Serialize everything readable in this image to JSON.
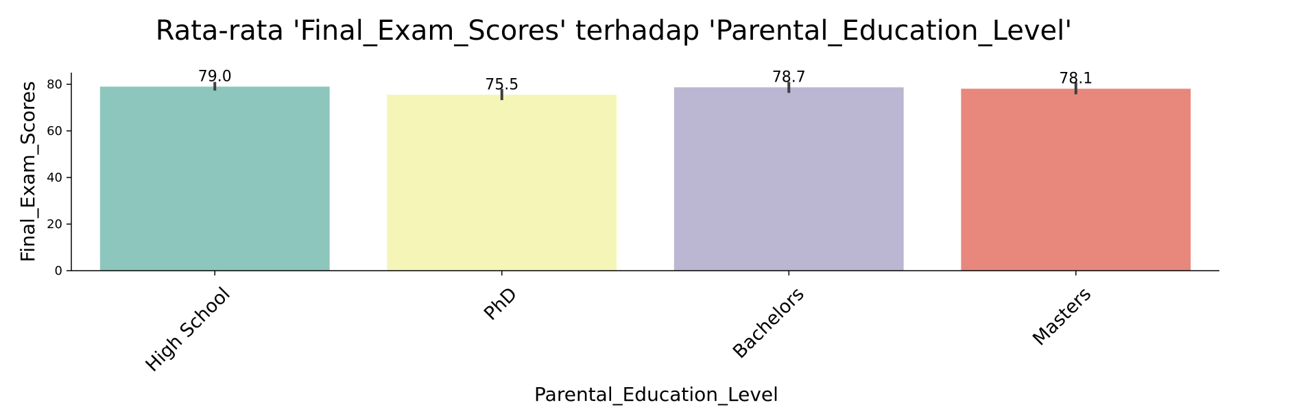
{
  "chart_data": {
    "type": "bar",
    "title": "Rata-rata 'Final_Exam_Scores' terhadap 'Parental_Education_Level'",
    "xlabel": "Parental_Education_Level",
    "ylabel": "Final_Exam_Scores",
    "categories": [
      "High School",
      "PhD",
      "Bachelors",
      "Masters"
    ],
    "values": [
      79.0,
      75.5,
      78.7,
      78.1
    ],
    "data_labels": [
      "79.0",
      "75.5",
      "78.7",
      "78.1"
    ],
    "error_bars": [
      [
        77.3,
        81.0
      ],
      [
        73.2,
        78.0
      ],
      [
        76.3,
        81.0
      ],
      [
        75.7,
        80.8
      ]
    ],
    "colors": [
      "#8dc6bc",
      "#f5f5b8",
      "#bbb6d2",
      "#e8877c"
    ],
    "yticks": [
      0,
      20,
      40,
      60,
      80
    ],
    "ytick_labels": [
      "0",
      "20",
      "40",
      "60",
      "80"
    ],
    "ylim": [
      0,
      85
    ],
    "grid": false,
    "legend": false
  }
}
